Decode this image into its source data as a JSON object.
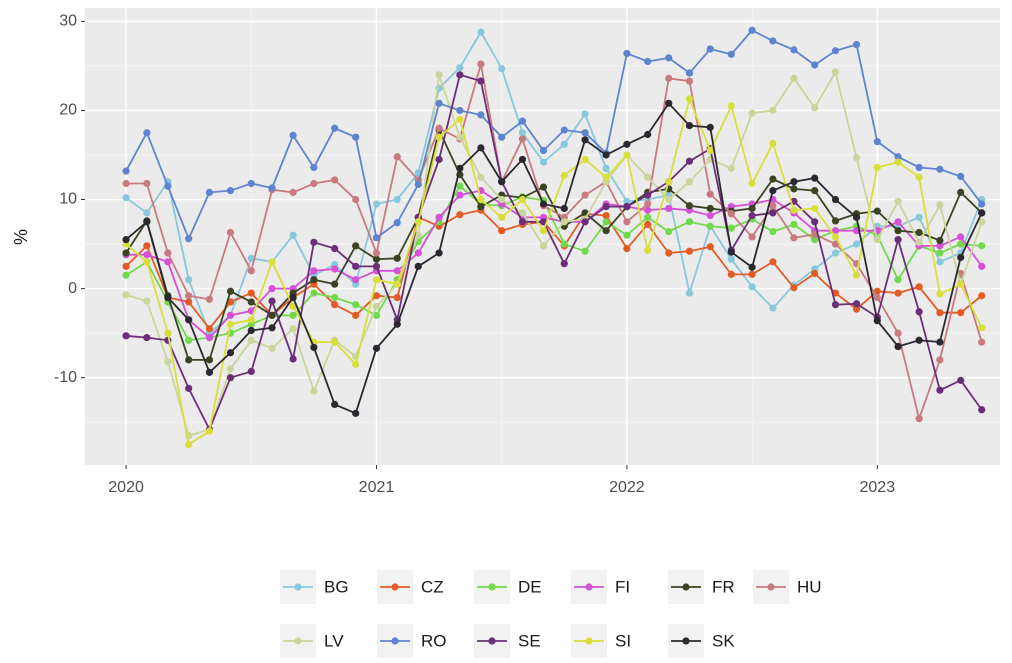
{
  "chart_data": {
    "type": "line",
    "y_label": "%",
    "x": [
      2020,
      2020.083,
      2020.167,
      2020.25,
      2020.333,
      2020.417,
      2020.5,
      2020.583,
      2020.667,
      2020.75,
      2020.833,
      2020.917,
      2021,
      2021.083,
      2021.167,
      2021.25,
      2021.333,
      2021.417,
      2021.5,
      2021.583,
      2021.667,
      2021.75,
      2021.833,
      2021.917,
      2022,
      2022.083,
      2022.167,
      2022.25,
      2022.333,
      2022.417,
      2022.5,
      2022.583,
      2022.667,
      2022.75,
      2022.833,
      2022.917,
      2023,
      2023.083,
      2023.167,
      2023.25,
      2023.333,
      2023.417
    ],
    "xlim": [
      2019.836,
      2023.49
    ],
    "xticks": [
      2020,
      2021,
      2022,
      2023
    ],
    "ylim": [
      -19.8,
      31.5
    ],
    "yticks": [
      -10,
      0,
      10,
      20,
      30
    ],
    "grid": true,
    "legend": "bottom",
    "series": [
      {
        "name": "BG",
        "color": "#89c8dc",
        "values": [
          10.2,
          8.5,
          12,
          1,
          -5,
          -3,
          3.4,
          3,
          6,
          1.5,
          2.7,
          0.5,
          9.5,
          10,
          13,
          22.5,
          24.8,
          28.8,
          24.7,
          17.5,
          14.2,
          16.2,
          19.6,
          13.5,
          9.8,
          10,
          10.5,
          -0.5,
          7,
          3.3,
          0.2,
          -2.2,
          0.4,
          2.2,
          4,
          5,
          7,
          7,
          8,
          3,
          4,
          10
        ]
      },
      {
        "name": "CZ",
        "color": "#e35c26",
        "values": [
          2.5,
          4.8,
          -1,
          -1.5,
          -4.5,
          -1.5,
          -0.5,
          -3,
          -1,
          0.5,
          -1.8,
          -3,
          -0.8,
          -1,
          8,
          7,
          8.3,
          8.8,
          6.5,
          7.2,
          7.5,
          4.8,
          8.4,
          8.2,
          4.5,
          7.2,
          4,
          4.2,
          4.7,
          1.6,
          1.6,
          3,
          0.1,
          1.7,
          -0.5,
          -2.3,
          -0.3,
          -0.5,
          0.2,
          -2.7,
          -2.7,
          -0.8
        ]
      },
      {
        "name": "DE",
        "color": "#72d94c",
        "values": [
          1.5,
          3,
          -1.5,
          -5.8,
          -5.5,
          -5,
          -4,
          -3,
          -3,
          -0.5,
          -1,
          -1.8,
          -3,
          1,
          5.3,
          7.5,
          11.5,
          9.5,
          9.3,
          10.3,
          9.9,
          5,
          4.2,
          7.5,
          6,
          8,
          6.4,
          7.5,
          7,
          6.8,
          7.8,
          6.4,
          7.2,
          5.5,
          6.5,
          7,
          6,
          1,
          4.8,
          4,
          5,
          4.8
        ]
      },
      {
        "name": "FI",
        "color": "#d551d8",
        "values": [
          3.8,
          3.8,
          3,
          -3.5,
          -5.5,
          -3,
          -2.5,
          0,
          0,
          2,
          2.2,
          1,
          2,
          2,
          4,
          8,
          10.5,
          11,
          9.5,
          8,
          8,
          7.5,
          7.5,
          9.5,
          9.2,
          8.8,
          9,
          8.8,
          8.2,
          9.2,
          9.5,
          10,
          8.5,
          6.5,
          6.5,
          6.5,
          6.5,
          7.5,
          4.8,
          4.8,
          5.8,
          2.5
        ]
      },
      {
        "name": "FR",
        "color": "#3b4322",
        "values": [
          4,
          7.6,
          -0.8,
          -8,
          -8,
          -0.3,
          -1.5,
          -3,
          -0.5,
          1,
          0.5,
          4.8,
          3.3,
          3.4,
          8,
          17.8,
          12.8,
          9.2,
          10.5,
          10.2,
          11.4,
          7,
          8.5,
          6.5,
          9.2,
          10.8,
          11.2,
          9.3,
          9,
          8.7,
          9,
          12.3,
          11.2,
          11,
          7.6,
          8.4,
          8.7,
          6.5,
          6.3,
          5.4,
          10.8,
          8.5
        ]
      },
      {
        "name": "HU",
        "color": "#c97a80",
        "values": [
          11.8,
          11.8,
          4,
          -0.8,
          -1.2,
          6.3,
          2,
          11.1,
          10.8,
          11.8,
          12.2,
          10,
          4,
          14.8,
          12.2,
          18,
          16.8,
          25.2,
          12,
          16.8,
          9.3,
          8,
          10.5,
          12,
          7.5,
          9.5,
          23.6,
          23.3,
          10.6,
          8.4,
          5.8,
          9.3,
          5.7,
          6.1,
          5,
          2.8,
          -1,
          -5,
          -14.6,
          -8,
          1.7,
          -6
        ]
      },
      {
        "name": "LV",
        "color": "#c9d59a",
        "values": [
          -0.7,
          -1.4,
          -8.2,
          -16.5,
          -15.8,
          -9,
          -5.8,
          -6.7,
          -4.5,
          -11.5,
          -5.8,
          -7.6,
          -2,
          0.5,
          6,
          24,
          17,
          12.5,
          10,
          8.5,
          4.8,
          7.5,
          7.8,
          12,
          15,
          12.5,
          10,
          12,
          14.5,
          13.5,
          19.7,
          20,
          23.6,
          20.3,
          24.3,
          14.7,
          5.5,
          9.8,
          5.2,
          9.4,
          0.5,
          7.5
        ]
      },
      {
        "name": "RO",
        "color": "#5e84d0",
        "values": [
          13.2,
          17.5,
          11.5,
          5.6,
          10.8,
          11,
          11.8,
          11.3,
          17.2,
          13.6,
          18,
          17,
          5.7,
          7.4,
          11.7,
          20.8,
          20,
          19.5,
          17,
          18.8,
          15.5,
          17.8,
          17.5,
          15.2,
          26.4,
          25.5,
          25.9,
          24.2,
          26.9,
          26.3,
          29,
          27.8,
          26.8,
          25.1,
          26.7,
          27.4,
          16.5,
          14.8,
          13.6,
          13.4,
          12.6,
          9.5
        ]
      },
      {
        "name": "SE",
        "color": "#6a2f77",
        "values": [
          -5.3,
          -5.5,
          -5.8,
          -11.2,
          -15.8,
          -10,
          -9.3,
          -1.4,
          -7.9,
          5.2,
          4.5,
          2.5,
          2.5,
          -3.5,
          8,
          14.5,
          24,
          23.3,
          12,
          7.5,
          7.5,
          2.8,
          7.5,
          9.2,
          9.2,
          10.5,
          12,
          14.3,
          15.7,
          4.3,
          8.2,
          8.5,
          9.8,
          7.5,
          -1.8,
          -1.7,
          -3.2,
          5.5,
          -2.6,
          -11.4,
          -10.3,
          -13.6
        ]
      },
      {
        "name": "SI",
        "color": "#d9df3a",
        "values": [
          5,
          3,
          -5,
          -17.5,
          -16,
          -4,
          -3.5,
          3,
          -2,
          -6,
          -6,
          -8.5,
          1,
          0.5,
          7.5,
          17,
          19,
          10,
          8,
          10,
          6.5,
          12.7,
          14.5,
          12.5,
          15,
          4.3,
          12,
          21.3,
          15.5,
          20.5,
          11.8,
          16.3,
          8.8,
          9,
          5.8,
          1.5,
          13.6,
          14.2,
          12.5,
          -0.6,
          0.5,
          -4.4
        ]
      },
      {
        "name": "SK",
        "color": "#2c2830",
        "values": [
          5.5,
          7.5,
          -1,
          -3.5,
          -9.4,
          -7.2,
          -4.7,
          -4.4,
          -1,
          -6.6,
          -13,
          -14,
          -6.7,
          -4,
          2.5,
          4,
          13.5,
          15.8,
          12,
          14.5,
          9.5,
          9,
          16.7,
          15,
          16.2,
          17.3,
          20.8,
          18.3,
          18.1,
          4.1,
          2.4,
          11,
          12,
          12.4,
          10,
          8,
          -3.6,
          -6.5,
          -5.8,
          -6,
          3.5,
          8.5
        ]
      }
    ]
  }
}
